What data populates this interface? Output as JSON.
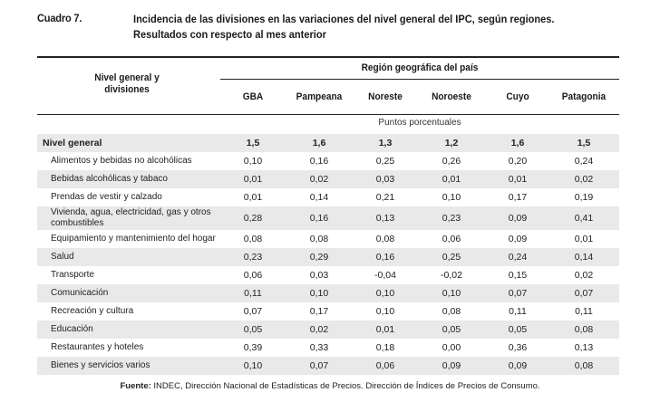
{
  "cuadro": "Cuadro 7.",
  "title_line1": "Incidencia de las divisiones en las variaciones del nivel general del IPC, según regiones.",
  "title_line2": "Resultados con respecto al mes anterior",
  "header": {
    "nivel_line1": "Nivel general y",
    "nivel_line2": "divisiones",
    "region": "Región geográfica del país",
    "columns": [
      "GBA",
      "Pampeana",
      "Noreste",
      "Noroeste",
      "Cuyo",
      "Patagonia"
    ]
  },
  "units": "Puntos porcentuales",
  "rows": [
    {
      "label": "Nivel general",
      "values": [
        "1,5",
        "1,6",
        "1,3",
        "1,2",
        "1,6",
        "1,5"
      ],
      "total": true
    },
    {
      "label": "Alimentos y bebidas no alcohólicas",
      "values": [
        "0,10",
        "0,16",
        "0,25",
        "0,26",
        "0,20",
        "0,24"
      ]
    },
    {
      "label": "Bebidas alcohólicas y tabaco",
      "values": [
        "0,01",
        "0,02",
        "0,03",
        "0,01",
        "0,01",
        "0,02"
      ]
    },
    {
      "label": "Prendas de vestir y calzado",
      "values": [
        "0,01",
        "0,14",
        "0,21",
        "0,10",
        "0,17",
        "0,19"
      ]
    },
    {
      "label": "Vivienda, agua, electricidad, gas y otros combustibles",
      "values": [
        "0,28",
        "0,16",
        "0,13",
        "0,23",
        "0,09",
        "0,41"
      ]
    },
    {
      "label": "Equipamiento y mantenimiento del hogar",
      "values": [
        "0,08",
        "0,08",
        "0,08",
        "0,06",
        "0,09",
        "0,01"
      ]
    },
    {
      "label": "Salud",
      "values": [
        "0,23",
        "0,29",
        "0,16",
        "0,25",
        "0,24",
        "0,14"
      ]
    },
    {
      "label": "Transporte",
      "values": [
        "0,06",
        "0,03",
        "-0,04",
        "-0,02",
        "0,15",
        "0,02"
      ]
    },
    {
      "label": "Comunicación",
      "values": [
        "0,11",
        "0,10",
        "0,10",
        "0,10",
        "0,07",
        "0,07"
      ]
    },
    {
      "label": "Recreación y cultura",
      "values": [
        "0,07",
        "0,17",
        "0,10",
        "0,08",
        "0,11",
        "0,11"
      ]
    },
    {
      "label": "Educación",
      "values": [
        "0,05",
        "0,02",
        "0,01",
        "0,05",
        "0,05",
        "0,08"
      ]
    },
    {
      "label": "Restaurantes y hoteles",
      "values": [
        "0,39",
        "0,33",
        "0,18",
        "0,00",
        "0,36",
        "0,13"
      ]
    },
    {
      "label": "Bienes y servicios varios",
      "values": [
        "0,10",
        "0,07",
        "0,06",
        "0,09",
        "0,09",
        "0,08"
      ]
    }
  ],
  "source_label": "Fuente:",
  "source_text": " INDEC, Dirección Nacional de Estadísticas de Precios. Dirección de Índices de Precios de Consumo."
}
